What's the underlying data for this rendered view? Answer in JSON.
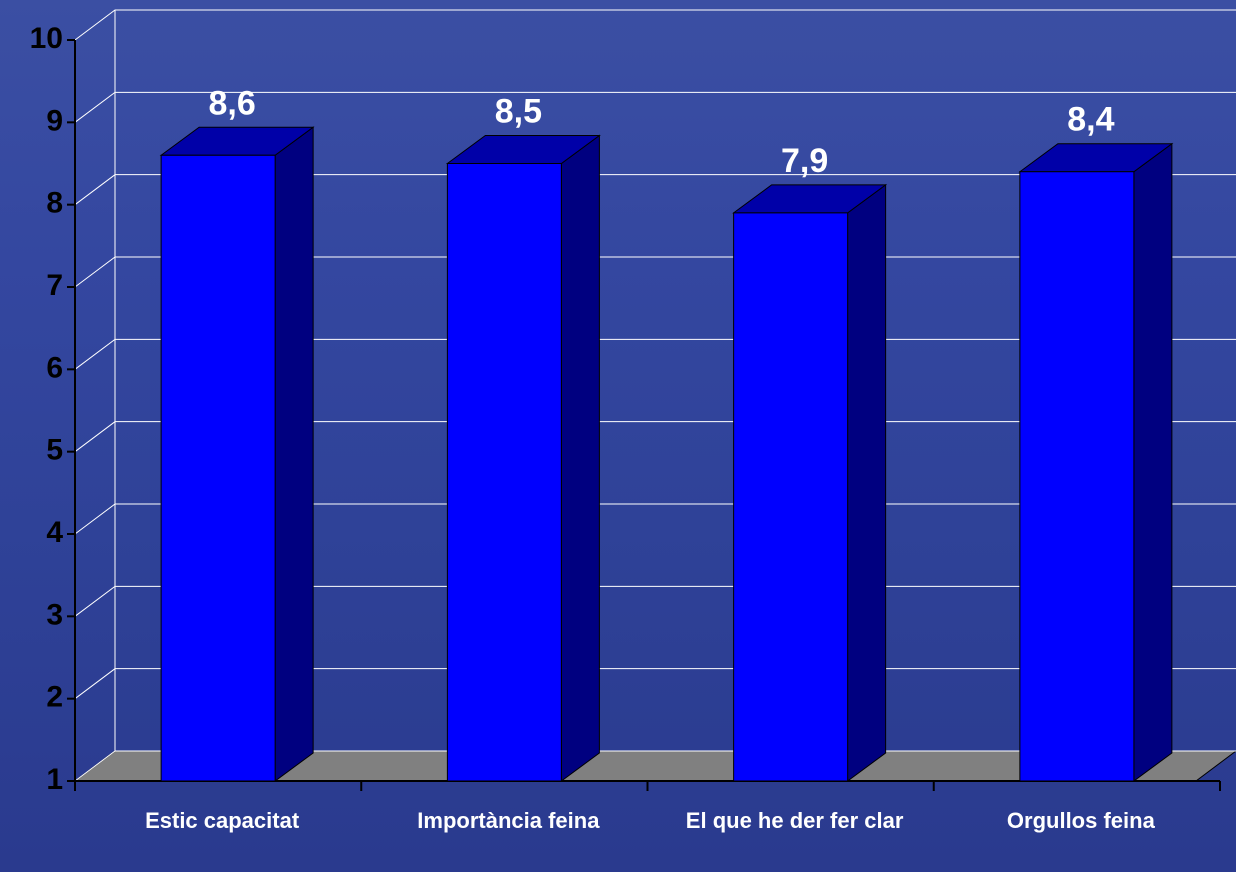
{
  "chart_data": {
    "type": "bar3d",
    "categories": [
      "Estic capacitat",
      "Importància feina",
      "El que he der fer clar",
      "Orgullos feina"
    ],
    "values": [
      8.6,
      8.5,
      7.9,
      8.4
    ],
    "value_labels": [
      "8,6",
      "8,5",
      "7,9",
      "8,4"
    ],
    "color": "#0000ff",
    "ylim": [
      1,
      10
    ],
    "yticks": [
      1,
      2,
      3,
      4,
      5,
      6,
      7,
      8,
      9,
      10
    ],
    "grid": true
  }
}
